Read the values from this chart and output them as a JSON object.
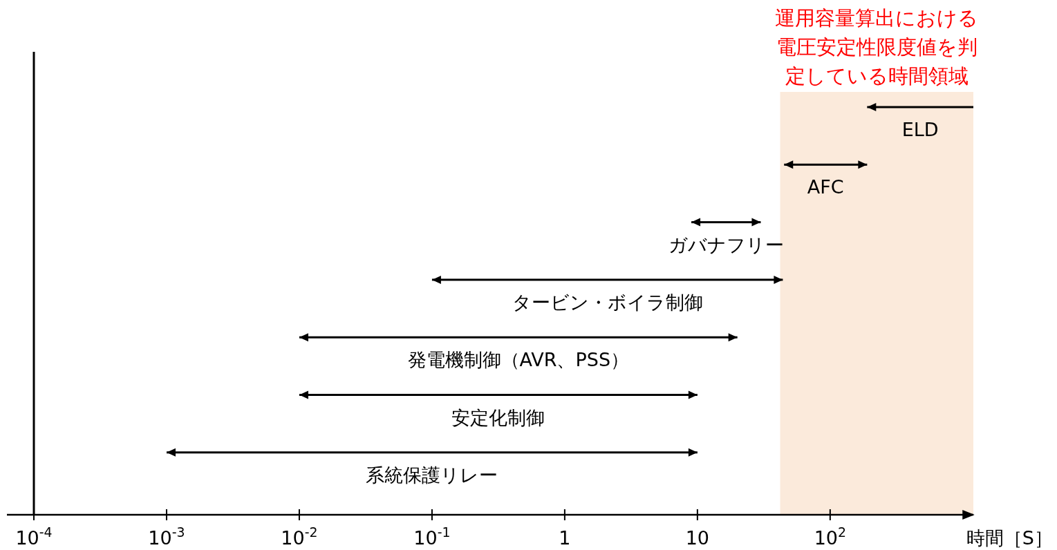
{
  "chart_data": {
    "type": "bar",
    "orientation": "horizontal",
    "log": "x",
    "grid": false,
    "tick_labels": "x",
    "xlabel": "時間［S］",
    "categories": [
      "ELD",
      "AFC",
      "ガバナフリー",
      "タービン・ボイラ制御",
      "発電機制御（AVR、PSS）",
      "安定化制御",
      "系統保護リレー"
    ],
    "base": [
      190,
      45,
      9,
      0.1,
      0.01,
      0.01,
      0.001
    ],
    "values": [
      1010,
      145,
      21,
      43.9,
      19.99,
      9.99,
      9.999
    ],
    "color": "#000000",
    "xlim": [
      0.0001,
      1200
    ],
    "xticks": [
      {
        "value": 0.0001,
        "label": "10$^{-4}$"
      },
      {
        "value": 0.001,
        "label": "10$^{-3}$"
      },
      {
        "value": 0.01,
        "label": "10$^{-2}$"
      },
      {
        "value": 0.1,
        "label": "10$^{-1}$"
      },
      1,
      10,
      {
        "value": 100,
        "label": "10$^{2}$"
      }
    ],
    "bands": [
      {
        "axis": "x",
        "from": 42,
        "to": 1200,
        "label": "運用容量算出における電圧安定性限度値を判定している時間領域",
        "color": "#fbeadb"
      }
    ]
  }
}
